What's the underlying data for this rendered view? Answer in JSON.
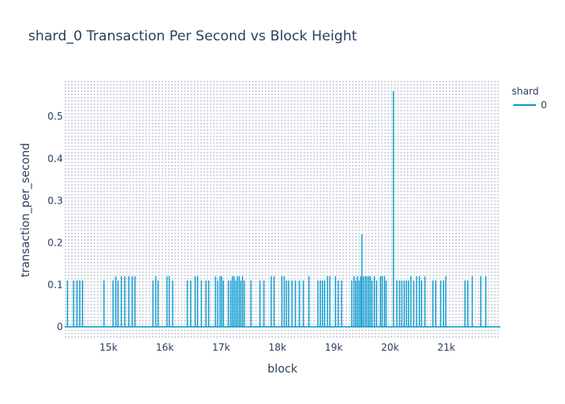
{
  "chart_data": {
    "type": "line",
    "title": "shard_0 Transaction Per Second vs Block Height",
    "xlabel": "block",
    "ylabel": "transaction_per_second",
    "xlim": [
      14220,
      21960
    ],
    "ylim": [
      -0.03,
      0.585
    ],
    "x_ticks": [
      15000,
      16000,
      17000,
      18000,
      19000,
      20000,
      21000
    ],
    "x_tick_labels": [
      "15k",
      "16k",
      "17k",
      "18k",
      "19k",
      "20k",
      "21k"
    ],
    "y_ticks": [
      0,
      0.1,
      0.2,
      0.3,
      0.4,
      0.5
    ],
    "y_tick_labels": [
      "0",
      "0.1",
      "0.2",
      "0.3",
      "0.4",
      "0.5"
    ],
    "legend": {
      "title": "shard",
      "position": "top-right"
    },
    "grid": true,
    "colors": {
      "series": "#0b9bd0",
      "grid": "#7a8aa8",
      "text": "#2a3f5f"
    },
    "series": [
      {
        "name": "0",
        "spikes": [
          [
            14270,
            0.11
          ],
          [
            14380,
            0.11
          ],
          [
            14440,
            0.11
          ],
          [
            14490,
            0.11
          ],
          [
            14540,
            0.11
          ],
          [
            14920,
            0.11
          ],
          [
            15080,
            0.11
          ],
          [
            15130,
            0.12
          ],
          [
            15170,
            0.11
          ],
          [
            15230,
            0.12
          ],
          [
            15290,
            0.12
          ],
          [
            15360,
            0.12
          ],
          [
            15420,
            0.12
          ],
          [
            15470,
            0.12
          ],
          [
            15790,
            0.11
          ],
          [
            15840,
            0.12
          ],
          [
            15880,
            0.11
          ],
          [
            16040,
            0.12
          ],
          [
            16080,
            0.12
          ],
          [
            16140,
            0.11
          ],
          [
            16400,
            0.11
          ],
          [
            16460,
            0.11
          ],
          [
            16540,
            0.12
          ],
          [
            16580,
            0.12
          ],
          [
            16650,
            0.11
          ],
          [
            16730,
            0.11
          ],
          [
            16780,
            0.11
          ],
          [
            16900,
            0.12
          ],
          [
            16940,
            0.11
          ],
          [
            16980,
            0.12
          ],
          [
            17010,
            0.12
          ],
          [
            17040,
            0.11
          ],
          [
            17130,
            0.11
          ],
          [
            17170,
            0.11
          ],
          [
            17200,
            0.12
          ],
          [
            17230,
            0.12
          ],
          [
            17260,
            0.11
          ],
          [
            17290,
            0.12
          ],
          [
            17320,
            0.12
          ],
          [
            17350,
            0.11
          ],
          [
            17380,
            0.12
          ],
          [
            17410,
            0.11
          ],
          [
            17530,
            0.11
          ],
          [
            17690,
            0.11
          ],
          [
            17760,
            0.11
          ],
          [
            17890,
            0.12
          ],
          [
            17940,
            0.12
          ],
          [
            18080,
            0.12
          ],
          [
            18120,
            0.12
          ],
          [
            18160,
            0.11
          ],
          [
            18200,
            0.11
          ],
          [
            18260,
            0.11
          ],
          [
            18320,
            0.11
          ],
          [
            18390,
            0.11
          ],
          [
            18460,
            0.11
          ],
          [
            18560,
            0.12
          ],
          [
            18720,
            0.11
          ],
          [
            18760,
            0.11
          ],
          [
            18800,
            0.11
          ],
          [
            18840,
            0.11
          ],
          [
            18890,
            0.12
          ],
          [
            18930,
            0.12
          ],
          [
            19030,
            0.12
          ],
          [
            19080,
            0.11
          ],
          [
            19140,
            0.11
          ],
          [
            19320,
            0.11
          ],
          [
            19360,
            0.12
          ],
          [
            19390,
            0.11
          ],
          [
            19420,
            0.12
          ],
          [
            19450,
            0.11
          ],
          [
            19480,
            0.12
          ],
          [
            19500,
            0.22
          ],
          [
            19530,
            0.12
          ],
          [
            19560,
            0.12
          ],
          [
            19590,
            0.12
          ],
          [
            19620,
            0.12
          ],
          [
            19650,
            0.12
          ],
          [
            19680,
            0.11
          ],
          [
            19720,
            0.12
          ],
          [
            19760,
            0.11
          ],
          [
            19830,
            0.12
          ],
          [
            19860,
            0.12
          ],
          [
            19900,
            0.12
          ],
          [
            19930,
            0.11
          ],
          [
            20060,
            0.56
          ],
          [
            20120,
            0.11
          ],
          [
            20170,
            0.11
          ],
          [
            20210,
            0.11
          ],
          [
            20250,
            0.11
          ],
          [
            20290,
            0.11
          ],
          [
            20330,
            0.11
          ],
          [
            20370,
            0.12
          ],
          [
            20420,
            0.11
          ],
          [
            20470,
            0.12
          ],
          [
            20520,
            0.12
          ],
          [
            20560,
            0.11
          ],
          [
            20620,
            0.12
          ],
          [
            20760,
            0.11
          ],
          [
            20810,
            0.11
          ],
          [
            20900,
            0.11
          ],
          [
            20950,
            0.11
          ],
          [
            20990,
            0.12
          ],
          [
            21330,
            0.11
          ],
          [
            21380,
            0.11
          ],
          [
            21460,
            0.12
          ],
          [
            21610,
            0.12
          ],
          [
            21700,
            0.12
          ]
        ]
      }
    ]
  }
}
